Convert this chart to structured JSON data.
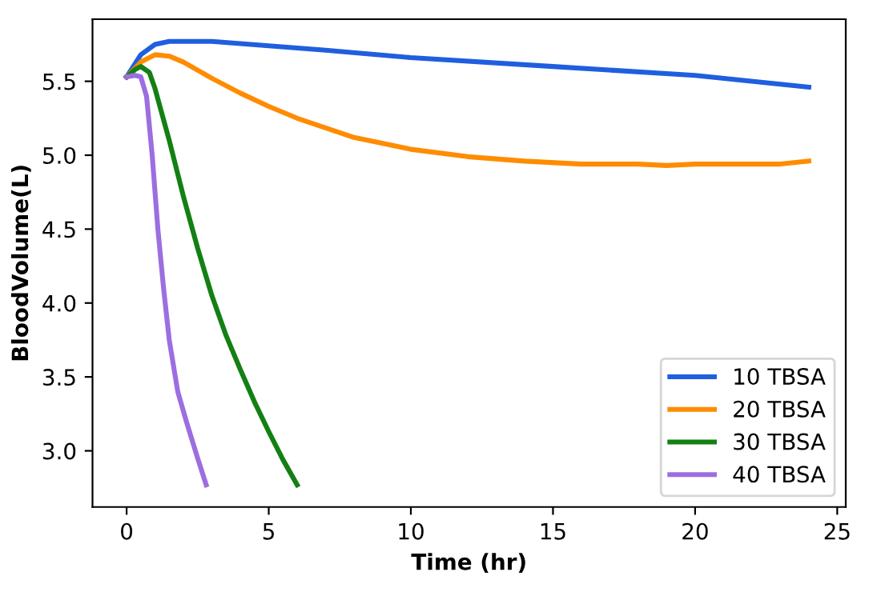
{
  "chart_data": {
    "type": "line",
    "xlabel": "Time (hr)",
    "ylabel": "BloodVolume(L)",
    "xlim": [
      -1.2,
      25.3
    ],
    "ylim": [
      2.62,
      5.92
    ],
    "xticks": [
      0,
      5,
      10,
      15,
      20,
      25
    ],
    "yticks": [
      {
        "value": 3,
        "label": "3.0"
      },
      3.5,
      {
        "value": 4,
        "label": "4.0"
      },
      4.5,
      {
        "value": 5,
        "label": "5.0"
      },
      5.5
    ],
    "grid": false,
    "legend": "bottom right",
    "marker": "none",
    "line_style": "solid",
    "series": [
      {
        "name": "10 TBSA",
        "color": "#1f5fdf",
        "x": [
          0,
          0.5,
          1,
          1.5,
          3,
          5,
          7,
          10,
          15,
          20,
          24
        ],
        "values": [
          5.53,
          5.68,
          5.75,
          5.77,
          5.77,
          5.74,
          5.71,
          5.66,
          5.6,
          5.54,
          5.46
        ]
      },
      {
        "name": "20 TBSA",
        "color": "#ff8c00",
        "x": [
          0,
          0.5,
          1,
          1.5,
          2,
          3,
          4,
          5,
          6,
          8,
          10,
          12,
          14,
          16,
          18,
          19,
          20,
          23,
          24
        ],
        "values": [
          5.53,
          5.63,
          5.68,
          5.67,
          5.63,
          5.52,
          5.42,
          5.33,
          5.25,
          5.12,
          5.04,
          4.99,
          4.96,
          4.94,
          4.94,
          4.93,
          4.94,
          4.94,
          4.96
        ]
      },
      {
        "name": "30 TBSA",
        "color": "#138013",
        "x": [
          0,
          0.3,
          0.5,
          0.8,
          1,
          1.5,
          2,
          2.5,
          3,
          3.5,
          4,
          4.5,
          5,
          5.5,
          6
        ],
        "values": [
          5.53,
          5.58,
          5.6,
          5.56,
          5.45,
          5.1,
          4.72,
          4.37,
          4.05,
          3.78,
          3.55,
          3.33,
          3.13,
          2.94,
          2.77
        ]
      },
      {
        "name": "40 TBSA",
        "color": "#9c6ee0",
        "x": [
          0,
          0.3,
          0.5,
          0.7,
          0.9,
          1.1,
          1.3,
          1.5,
          1.8,
          2.1,
          2.5,
          2.8
        ],
        "values": [
          5.53,
          5.54,
          5.53,
          5.4,
          5.0,
          4.5,
          4.1,
          3.75,
          3.4,
          3.2,
          2.95,
          2.77
        ]
      }
    ]
  }
}
